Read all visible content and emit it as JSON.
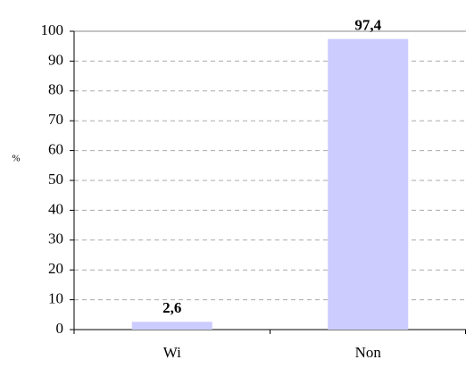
{
  "chart_data": {
    "type": "bar",
    "y_label": "%",
    "categories": [
      "Wi",
      "Non"
    ],
    "values": [
      2.6,
      97.4
    ],
    "value_labels": [
      "2,6",
      "97,4"
    ],
    "color": "#ccccff",
    "ylim": [
      0,
      100
    ],
    "yticks": [
      0,
      10,
      20,
      30,
      40,
      50,
      60,
      70,
      80,
      90,
      100
    ],
    "grid": true
  }
}
